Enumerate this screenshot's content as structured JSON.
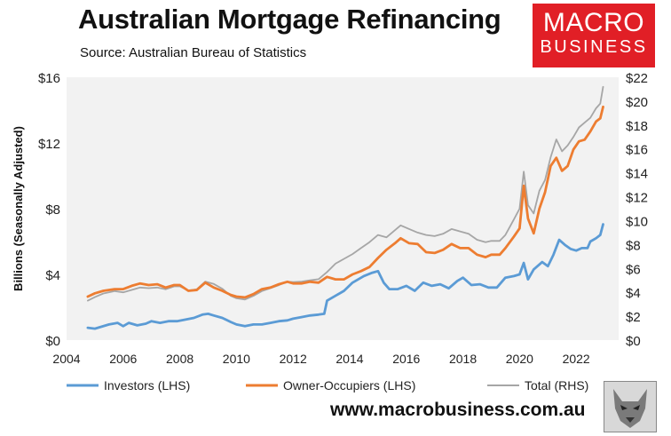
{
  "header": {
    "title": "Australian Mortgage Refinancing",
    "subtitle": "Source: Australian Bureau of Statistics"
  },
  "logo": {
    "line1": "MACRO",
    "line2": "BUSINESS",
    "color": "#e11f26"
  },
  "footer": {
    "url": "www.macrobusiness.com.au"
  },
  "colors": {
    "investors": "#5b9bd5",
    "owner_occupiers": "#ed7d31",
    "total": "#a6a6a6",
    "plot_background": "#f2f2f2"
  },
  "chart_data": {
    "type": "line",
    "title": "Australian Mortgage Refinancing",
    "ylabel": "Billions (Seasonally Adjusted)",
    "xlim": [
      2004,
      2023.5
    ],
    "ylim_left": [
      0,
      16
    ],
    "ylim_right": [
      0,
      22
    ],
    "x_ticks": [
      "2004",
      "2006",
      "2008",
      "2010",
      "2012",
      "2014",
      "2016",
      "2018",
      "2020",
      "2022"
    ],
    "y_ticks_left": [
      "$0",
      "$4",
      "$8",
      "$12",
      "$16"
    ],
    "y_ticks_right": [
      "$0",
      "$2",
      "$4",
      "$6",
      "$8",
      "$10",
      "$12",
      "$14",
      "$16",
      "$18",
      "$20",
      "$22"
    ],
    "legend_position": "bottom",
    "series": [
      {
        "name": "Investors (LHS)",
        "axis": "left",
        "color": "#5b9bd5",
        "points": [
          [
            2004.75,
            0.75
          ],
          [
            2005.0,
            0.7
          ],
          [
            2005.5,
            0.95
          ],
          [
            2005.8,
            1.05
          ],
          [
            2006.0,
            0.85
          ],
          [
            2006.2,
            1.05
          ],
          [
            2006.5,
            0.9
          ],
          [
            2006.8,
            1.0
          ],
          [
            2007.0,
            1.15
          ],
          [
            2007.3,
            1.05
          ],
          [
            2007.6,
            1.15
          ],
          [
            2007.9,
            1.15
          ],
          [
            2008.2,
            1.25
          ],
          [
            2008.5,
            1.35
          ],
          [
            2008.8,
            1.55
          ],
          [
            2009.0,
            1.6
          ],
          [
            2009.2,
            1.5
          ],
          [
            2009.5,
            1.35
          ],
          [
            2009.8,
            1.1
          ],
          [
            2010.0,
            0.95
          ],
          [
            2010.3,
            0.85
          ],
          [
            2010.6,
            0.95
          ],
          [
            2010.9,
            0.95
          ],
          [
            2011.2,
            1.05
          ],
          [
            2011.5,
            1.15
          ],
          [
            2011.8,
            1.2
          ],
          [
            2012.0,
            1.3
          ],
          [
            2012.3,
            1.4
          ],
          [
            2012.6,
            1.5
          ],
          [
            2012.9,
            1.55
          ],
          [
            2013.1,
            1.6
          ],
          [
            2013.2,
            2.4
          ],
          [
            2013.5,
            2.7
          ],
          [
            2013.8,
            3.0
          ],
          [
            2014.1,
            3.5
          ],
          [
            2014.5,
            3.9
          ],
          [
            2014.8,
            4.1
          ],
          [
            2015.0,
            4.2
          ],
          [
            2015.2,
            3.5
          ],
          [
            2015.4,
            3.1
          ],
          [
            2015.7,
            3.1
          ],
          [
            2016.0,
            3.3
          ],
          [
            2016.3,
            3.0
          ],
          [
            2016.6,
            3.5
          ],
          [
            2016.9,
            3.3
          ],
          [
            2017.2,
            3.4
          ],
          [
            2017.5,
            3.15
          ],
          [
            2017.8,
            3.6
          ],
          [
            2018.0,
            3.8
          ],
          [
            2018.3,
            3.35
          ],
          [
            2018.6,
            3.4
          ],
          [
            2018.9,
            3.2
          ],
          [
            2019.2,
            3.2
          ],
          [
            2019.5,
            3.8
          ],
          [
            2019.8,
            3.9
          ],
          [
            2020.0,
            4.0
          ],
          [
            2020.15,
            4.7
          ],
          [
            2020.3,
            3.7
          ],
          [
            2020.5,
            4.3
          ],
          [
            2020.8,
            4.75
          ],
          [
            2021.0,
            4.5
          ],
          [
            2021.2,
            5.2
          ],
          [
            2021.4,
            6.1
          ],
          [
            2021.6,
            5.8
          ],
          [
            2021.8,
            5.55
          ],
          [
            2022.0,
            5.45
          ],
          [
            2022.2,
            5.6
          ],
          [
            2022.4,
            5.6
          ],
          [
            2022.5,
            6.0
          ],
          [
            2022.7,
            6.2
          ],
          [
            2022.85,
            6.4
          ],
          [
            2022.95,
            7.05
          ]
        ]
      },
      {
        "name": "Owner-Occupiers (LHS)",
        "axis": "left",
        "color": "#ed7d31",
        "points": [
          [
            2004.75,
            2.65
          ],
          [
            2005.0,
            2.85
          ],
          [
            2005.3,
            3.0
          ],
          [
            2005.7,
            3.1
          ],
          [
            2006.0,
            3.1
          ],
          [
            2006.3,
            3.3
          ],
          [
            2006.6,
            3.45
          ],
          [
            2006.9,
            3.35
          ],
          [
            2007.2,
            3.4
          ],
          [
            2007.5,
            3.2
          ],
          [
            2007.8,
            3.35
          ],
          [
            2008.0,
            3.35
          ],
          [
            2008.3,
            3.0
          ],
          [
            2008.6,
            3.05
          ],
          [
            2008.9,
            3.5
          ],
          [
            2009.2,
            3.2
          ],
          [
            2009.5,
            3.0
          ],
          [
            2009.8,
            2.75
          ],
          [
            2010.0,
            2.65
          ],
          [
            2010.3,
            2.6
          ],
          [
            2010.6,
            2.8
          ],
          [
            2010.9,
            3.1
          ],
          [
            2011.2,
            3.2
          ],
          [
            2011.5,
            3.4
          ],
          [
            2011.8,
            3.55
          ],
          [
            2012.0,
            3.45
          ],
          [
            2012.3,
            3.45
          ],
          [
            2012.6,
            3.55
          ],
          [
            2012.9,
            3.5
          ],
          [
            2013.2,
            3.85
          ],
          [
            2013.5,
            3.7
          ],
          [
            2013.8,
            3.7
          ],
          [
            2014.1,
            4.0
          ],
          [
            2014.4,
            4.2
          ],
          [
            2014.7,
            4.45
          ],
          [
            2015.0,
            5.0
          ],
          [
            2015.3,
            5.5
          ],
          [
            2015.6,
            5.9
          ],
          [
            2015.8,
            6.2
          ],
          [
            2016.1,
            5.9
          ],
          [
            2016.4,
            5.85
          ],
          [
            2016.7,
            5.35
          ],
          [
            2017.0,
            5.3
          ],
          [
            2017.3,
            5.5
          ],
          [
            2017.6,
            5.85
          ],
          [
            2017.9,
            5.6
          ],
          [
            2018.2,
            5.6
          ],
          [
            2018.5,
            5.2
          ],
          [
            2018.8,
            5.05
          ],
          [
            2019.0,
            5.2
          ],
          [
            2019.3,
            5.2
          ],
          [
            2019.5,
            5.6
          ],
          [
            2019.8,
            6.3
          ],
          [
            2020.0,
            6.8
          ],
          [
            2020.15,
            9.4
          ],
          [
            2020.3,
            7.4
          ],
          [
            2020.5,
            6.5
          ],
          [
            2020.7,
            8.0
          ],
          [
            2020.9,
            9.0
          ],
          [
            2021.1,
            10.6
          ],
          [
            2021.3,
            11.1
          ],
          [
            2021.5,
            10.3
          ],
          [
            2021.7,
            10.6
          ],
          [
            2021.9,
            11.6
          ],
          [
            2022.1,
            12.1
          ],
          [
            2022.3,
            12.2
          ],
          [
            2022.5,
            12.7
          ],
          [
            2022.7,
            13.3
          ],
          [
            2022.85,
            13.5
          ],
          [
            2022.95,
            14.2
          ]
        ]
      },
      {
        "name": "Total (RHS)",
        "axis": "right",
        "color": "#a6a6a6",
        "points": [
          [
            2004.75,
            3.3
          ],
          [
            2005.0,
            3.6
          ],
          [
            2005.3,
            3.9
          ],
          [
            2005.7,
            4.1
          ],
          [
            2006.0,
            4.0
          ],
          [
            2006.3,
            4.2
          ],
          [
            2006.6,
            4.4
          ],
          [
            2006.9,
            4.35
          ],
          [
            2007.2,
            4.4
          ],
          [
            2007.5,
            4.25
          ],
          [
            2007.8,
            4.5
          ],
          [
            2008.0,
            4.5
          ],
          [
            2008.3,
            4.15
          ],
          [
            2008.6,
            4.25
          ],
          [
            2008.9,
            4.9
          ],
          [
            2009.2,
            4.7
          ],
          [
            2009.5,
            4.3
          ],
          [
            2009.8,
            3.7
          ],
          [
            2010.0,
            3.5
          ],
          [
            2010.3,
            3.4
          ],
          [
            2010.6,
            3.7
          ],
          [
            2010.9,
            4.1
          ],
          [
            2011.2,
            4.35
          ],
          [
            2011.5,
            4.6
          ],
          [
            2011.8,
            4.9
          ],
          [
            2012.0,
            4.85
          ],
          [
            2012.3,
            4.9
          ],
          [
            2012.6,
            5.0
          ],
          [
            2012.9,
            5.1
          ],
          [
            2013.2,
            5.7
          ],
          [
            2013.5,
            6.4
          ],
          [
            2013.8,
            6.8
          ],
          [
            2014.1,
            7.2
          ],
          [
            2014.4,
            7.7
          ],
          [
            2014.7,
            8.2
          ],
          [
            2015.0,
            8.8
          ],
          [
            2015.3,
            8.6
          ],
          [
            2015.6,
            9.2
          ],
          [
            2015.8,
            9.6
          ],
          [
            2016.1,
            9.3
          ],
          [
            2016.4,
            9.0
          ],
          [
            2016.7,
            8.8
          ],
          [
            2017.0,
            8.7
          ],
          [
            2017.3,
            8.9
          ],
          [
            2017.6,
            9.3
          ],
          [
            2017.9,
            9.1
          ],
          [
            2018.2,
            8.9
          ],
          [
            2018.5,
            8.4
          ],
          [
            2018.8,
            8.2
          ],
          [
            2019.0,
            8.3
          ],
          [
            2019.3,
            8.3
          ],
          [
            2019.5,
            8.8
          ],
          [
            2019.8,
            10.1
          ],
          [
            2020.0,
            11.0
          ],
          [
            2020.15,
            14.1
          ],
          [
            2020.3,
            11.3
          ],
          [
            2020.5,
            10.6
          ],
          [
            2020.7,
            12.5
          ],
          [
            2020.9,
            13.4
          ],
          [
            2021.1,
            15.3
          ],
          [
            2021.3,
            16.8
          ],
          [
            2021.5,
            15.8
          ],
          [
            2021.7,
            16.3
          ],
          [
            2021.9,
            17.0
          ],
          [
            2022.1,
            17.8
          ],
          [
            2022.3,
            18.2
          ],
          [
            2022.5,
            18.6
          ],
          [
            2022.7,
            19.4
          ],
          [
            2022.85,
            19.8
          ],
          [
            2022.95,
            21.2
          ]
        ]
      }
    ]
  }
}
